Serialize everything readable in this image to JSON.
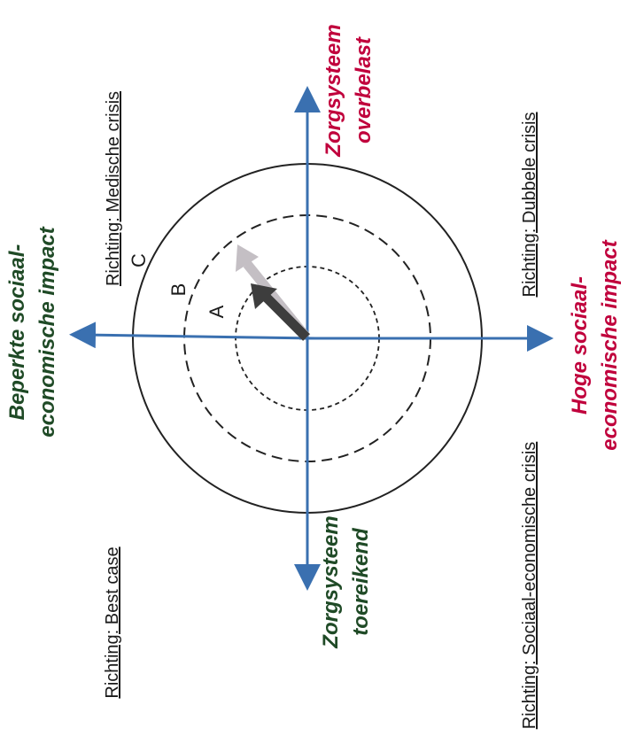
{
  "quadrants": {
    "top_left": "Richting: Best case",
    "bottom_left": "Richting: Sociaal-economische crisis",
    "top_right": "Richting: Medische crisis",
    "bottom_right": "Richting: Dubbele crisis"
  },
  "axes": {
    "up_label": [
      "Beperkte sociaal-",
      "economische impact"
    ],
    "down_label": [
      "Hoge sociaal-",
      "economische impact"
    ],
    "left_label": [
      "Zorgsysteem",
      "toereikend"
    ],
    "right_label": [
      "Zorgsysteem",
      "overbelast"
    ]
  },
  "rings": {
    "inner": "A",
    "middle": "B",
    "outer": "C"
  },
  "colors": {
    "axis": "#3a70b0",
    "green_label": "#1f4a26",
    "red_label": "#c0003c",
    "arrow_dark": "#3d3d3d",
    "arrow_light": "#c4bfc4"
  }
}
